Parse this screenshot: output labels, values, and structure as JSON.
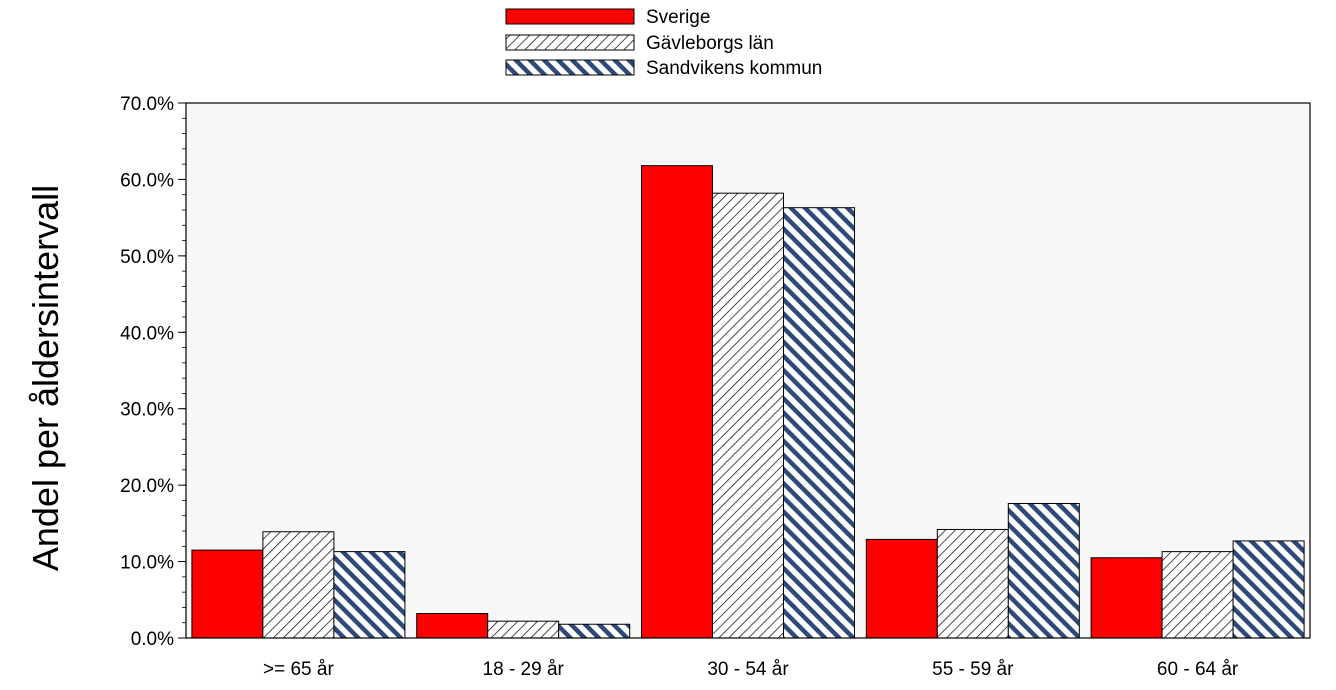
{
  "chart_data": {
    "type": "bar",
    "ylabel": "Andel per åldersintervall",
    "xlabel": "",
    "ylim": [
      0,
      70
    ],
    "yticks": [
      0,
      10,
      20,
      30,
      40,
      50,
      60,
      70
    ],
    "ytick_labels": [
      "0.0%",
      "10.0%",
      "20.0%",
      "30.0%",
      "40.0%",
      "50.0%",
      "60.0%",
      "70.0%"
    ],
    "categories": [
      ">= 65 år",
      "18 - 29 år",
      "30 - 54 år",
      "55 - 59 år",
      "60 - 64 år"
    ],
    "series": [
      {
        "name": "Sverige",
        "values": [
          11.5,
          3.2,
          61.8,
          12.9,
          10.5
        ],
        "color": "#ff0000",
        "pattern": "solid"
      },
      {
        "name": "Gävleborgs län",
        "values": [
          13.9,
          2.2,
          58.2,
          14.2,
          11.3
        ],
        "color": "#000000",
        "pattern": "hatch-diagonal"
      },
      {
        "name": "Sandvikens kommun",
        "values": [
          11.3,
          1.8,
          56.3,
          17.6,
          12.7
        ],
        "color": "#1f3a66",
        "pattern": "hatch-blue"
      }
    ],
    "grid": false,
    "legend_position": "top-center",
    "plot_background": "#f8f8f8"
  }
}
